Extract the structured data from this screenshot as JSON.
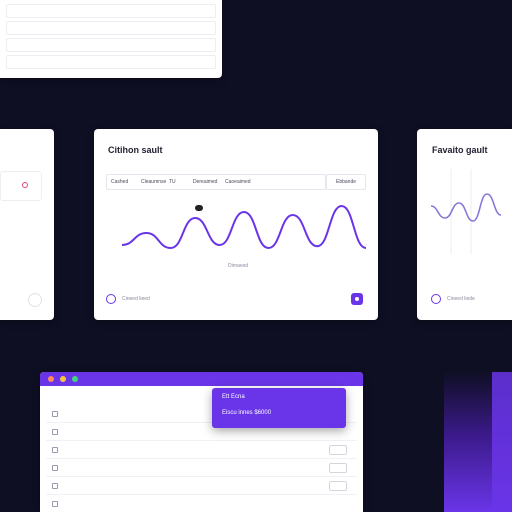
{
  "colors": {
    "accent": "#6a35e8",
    "background": "#0f0f24",
    "line_secondary": "#8a78d8"
  },
  "top_card": {
    "rows": [
      {
        "left": "",
        "right": ""
      },
      {
        "left": "",
        "right": ""
      },
      {
        "left": "",
        "right": ""
      },
      {
        "left": "",
        "right": ""
      }
    ]
  },
  "main_card": {
    "title": "Citihon sault",
    "filters": [
      "Cashed",
      "Cleaumnse",
      "TU",
      "Dereaimed",
      "Caoeaimed"
    ],
    "button_label": "Ebbande",
    "y_ticks": [
      "",
      "",
      "",
      "",
      ""
    ],
    "xlabel": "Dirnaesd",
    "peak_badge": "",
    "footer_label": "Cineed lieed",
    "add_icon": "plus-icon"
  },
  "right_card": {
    "title": "Favaito gault",
    "x_ticks": [
      "",
      "",
      ""
    ],
    "footer_label": "Cineed liede"
  },
  "table_window": {
    "header": {
      "col1": "",
      "col2": "",
      "col3": ""
    },
    "rows": [
      {
        "c1": "",
        "c2": "",
        "c3": "",
        "c4": ""
      },
      {
        "c1": "",
        "c2": "",
        "c3": "",
        "c4": ""
      },
      {
        "c1": "",
        "c2": "",
        "c3": "",
        "c4": ""
      },
      {
        "c1": "",
        "c2": "",
        "c3": "",
        "c4": ""
      },
      {
        "c1": "",
        "c2": "",
        "c3": "",
        "c4": ""
      }
    ]
  },
  "popup": {
    "line1": "Ett Ecna",
    "line2": "Eiscu innes $6000"
  },
  "chart_data": {
    "type": "line",
    "series": [
      {
        "values": [
          0.1,
          0.3,
          0.05,
          0.55,
          0.1,
          0.65,
          0.05,
          0.6,
          0.08,
          0.75,
          0.05
        ]
      }
    ],
    "ylim": [
      0,
      1
    ]
  }
}
